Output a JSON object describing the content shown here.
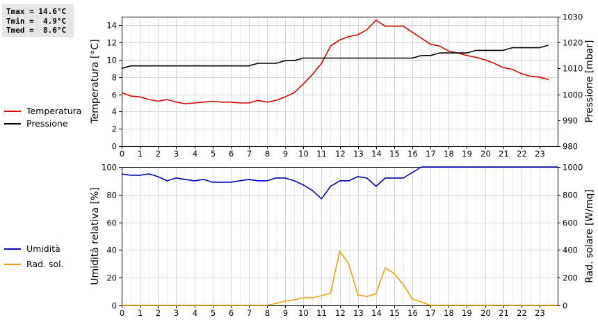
{
  "stats": {
    "tmax": "Tmax = 14.6°C",
    "tmin": "Tmin =  4.9°C",
    "tmed": "Tmed =  8.6°C"
  },
  "colors": {
    "temperature": "#dd0000",
    "pressure": "#000000",
    "humidity": "#0000bb",
    "radiation": "#f0a000"
  },
  "chart_data": [
    {
      "type": "line",
      "xlim": [
        0,
        24
      ],
      "x_ticks": [
        "0",
        "1",
        "2",
        "3",
        "4",
        "5",
        "6",
        "7",
        "8",
        "9",
        "10",
        "11",
        "12",
        "13",
        "14",
        "15",
        "16",
        "17",
        "18",
        "19",
        "20",
        "21",
        "22",
        "23"
      ],
      "grid": true,
      "y_left": {
        "label": "Temperatura [°C]",
        "ylim": [
          0,
          15
        ],
        "ticks": [
          "0",
          "2",
          "4",
          "6",
          "8",
          "10",
          "12",
          "14"
        ]
      },
      "y_right": {
        "label": "Pressione [mbar]",
        "ylim": [
          980,
          1030
        ],
        "ticks": [
          "980",
          "990",
          "1000",
          "1010",
          "1020",
          "1030"
        ]
      },
      "series": [
        {
          "name": "Temperatura",
          "axis": "left",
          "color": "#dd0000",
          "x": [
            0,
            0.5,
            1,
            1.5,
            2,
            2.5,
            3,
            3.5,
            4,
            4.5,
            5,
            5.5,
            6,
            6.5,
            7,
            7.5,
            8,
            8.5,
            9,
            9.5,
            10,
            10.5,
            11,
            11.5,
            12,
            12.5,
            13,
            13.5,
            14,
            14.5,
            15,
            15.5,
            16,
            16.5,
            17,
            17.5,
            18,
            18.5,
            19,
            19.5,
            20,
            20.5,
            21,
            21.5,
            22,
            22.5,
            23,
            23.5
          ],
          "values": [
            6.2,
            5.8,
            5.7,
            5.4,
            5.2,
            5.4,
            5.1,
            4.9,
            5.0,
            5.1,
            5.2,
            5.1,
            5.1,
            5.0,
            5.0,
            5.3,
            5.1,
            5.3,
            5.7,
            6.2,
            7.2,
            8.3,
            9.6,
            11.6,
            12.3,
            12.7,
            12.9,
            13.5,
            14.6,
            13.9,
            13.9,
            13.9,
            13.2,
            12.5,
            11.8,
            11.6,
            11.0,
            10.8,
            10.5,
            10.3,
            10.0,
            9.6,
            9.1,
            8.9,
            8.4,
            8.1,
            8.0,
            7.7
          ]
        },
        {
          "name": "Pressione",
          "axis": "right",
          "color": "#000000",
          "x": [
            0,
            0.5,
            1,
            7,
            7.5,
            8,
            8.5,
            9,
            9.5,
            10,
            10.5,
            11,
            16,
            16.5,
            17,
            17.5,
            18,
            18.5,
            19,
            19.5,
            20,
            20.5,
            21,
            21.5,
            22,
            22.5,
            23,
            23.5
          ],
          "values": [
            1010,
            1011,
            1011,
            1011,
            1012,
            1012,
            1012,
            1013,
            1013,
            1014,
            1014,
            1014,
            1014,
            1015,
            1015,
            1016,
            1016,
            1016,
            1016,
            1017,
            1017,
            1017,
            1017,
            1018,
            1018,
            1018,
            1018,
            1019
          ]
        }
      ]
    },
    {
      "type": "line",
      "xlim": [
        0,
        24
      ],
      "x_ticks": [
        "0",
        "1",
        "2",
        "3",
        "4",
        "5",
        "6",
        "7",
        "8",
        "9",
        "10",
        "11",
        "12",
        "13",
        "14",
        "15",
        "16",
        "17",
        "18",
        "19",
        "20",
        "21",
        "22",
        "23"
      ],
      "grid": true,
      "y_left": {
        "label": "Umidità relativa [%]",
        "ylim": [
          0,
          100
        ],
        "ticks": [
          "0",
          "20",
          "40",
          "60",
          "80",
          "100"
        ]
      },
      "y_right": {
        "label": "Rad. solare [W/mq]",
        "ylim": [
          0,
          1000
        ],
        "ticks": [
          "0",
          "200",
          "400",
          "600",
          "800",
          "1000"
        ]
      },
      "series": [
        {
          "name": "Umidità",
          "axis": "left",
          "color": "#0000bb",
          "x": [
            0,
            0.5,
            1,
            1.5,
            2,
            2.5,
            3,
            3.5,
            4,
            4.5,
            5,
            5.5,
            6,
            6.5,
            7,
            7.5,
            8,
            8.5,
            9,
            9.5,
            10,
            10.5,
            11,
            11.5,
            12,
            12.5,
            13,
            13.5,
            14,
            14.5,
            15,
            15.5,
            16,
            16.5,
            17,
            24
          ],
          "values": [
            95,
            94,
            94,
            95,
            93,
            90,
            92,
            91,
            90,
            91,
            89,
            89,
            89,
            90,
            91,
            90,
            90,
            92,
            92,
            90,
            87,
            83,
            77,
            86,
            90,
            90,
            93,
            92,
            86,
            92,
            92,
            92,
            96,
            100,
            100,
            100
          ]
        },
        {
          "name": "Rad. sol.",
          "axis": "right",
          "color": "#f0a000",
          "x": [
            0,
            8,
            8.5,
            9,
            9.5,
            10,
            10.5,
            11,
            11.5,
            12,
            12.5,
            13,
            13.5,
            14,
            14.5,
            15,
            15.5,
            16,
            16.5,
            17,
            24
          ],
          "values": [
            0,
            0,
            15,
            30,
            40,
            55,
            55,
            70,
            90,
            390,
            300,
            75,
            65,
            85,
            270,
            230,
            150,
            45,
            25,
            0,
            0
          ]
        }
      ]
    }
  ]
}
